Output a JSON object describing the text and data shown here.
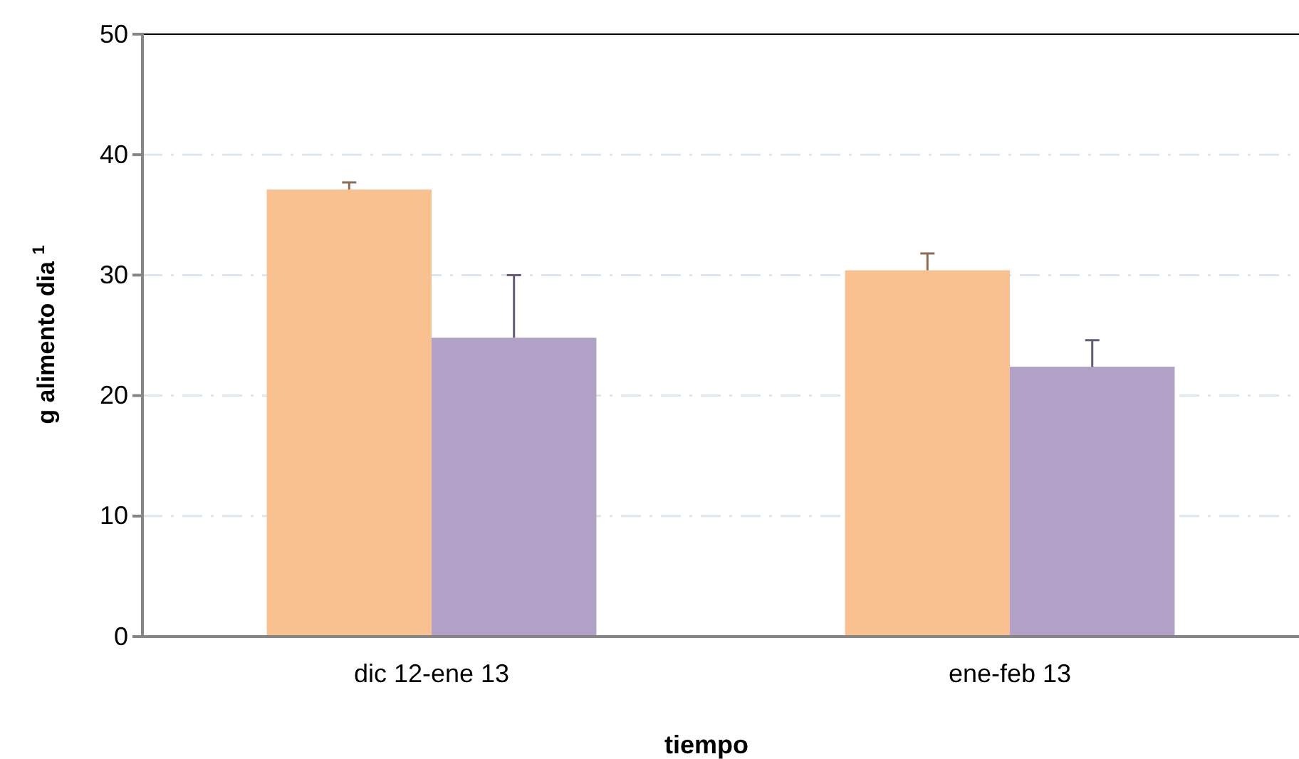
{
  "chart_data": {
    "type": "bar",
    "xlabel": "tiempo",
    "ylabel": "g alimento dia $^{1}$",
    "categories": [
      "dic 12-ene 13",
      "ene-feb 13"
    ],
    "series": [
      {
        "color": "#f9c090",
        "values": [
          37.1,
          30.4
        ],
        "errors": [
          [
            37.1,
            37.7
          ],
          [
            30.4,
            31.8
          ]
        ]
      },
      {
        "color": "#b1a1c7",
        "values": [
          24.8,
          22.4
        ],
        "errors": [
          [
            24.8,
            30.0
          ],
          [
            22.4,
            24.6
          ]
        ]
      }
    ],
    "ylim": [
      0,
      50
    ],
    "yticks": [
      0,
      10,
      20,
      30,
      40,
      50
    ],
    "grid": "y"
  }
}
